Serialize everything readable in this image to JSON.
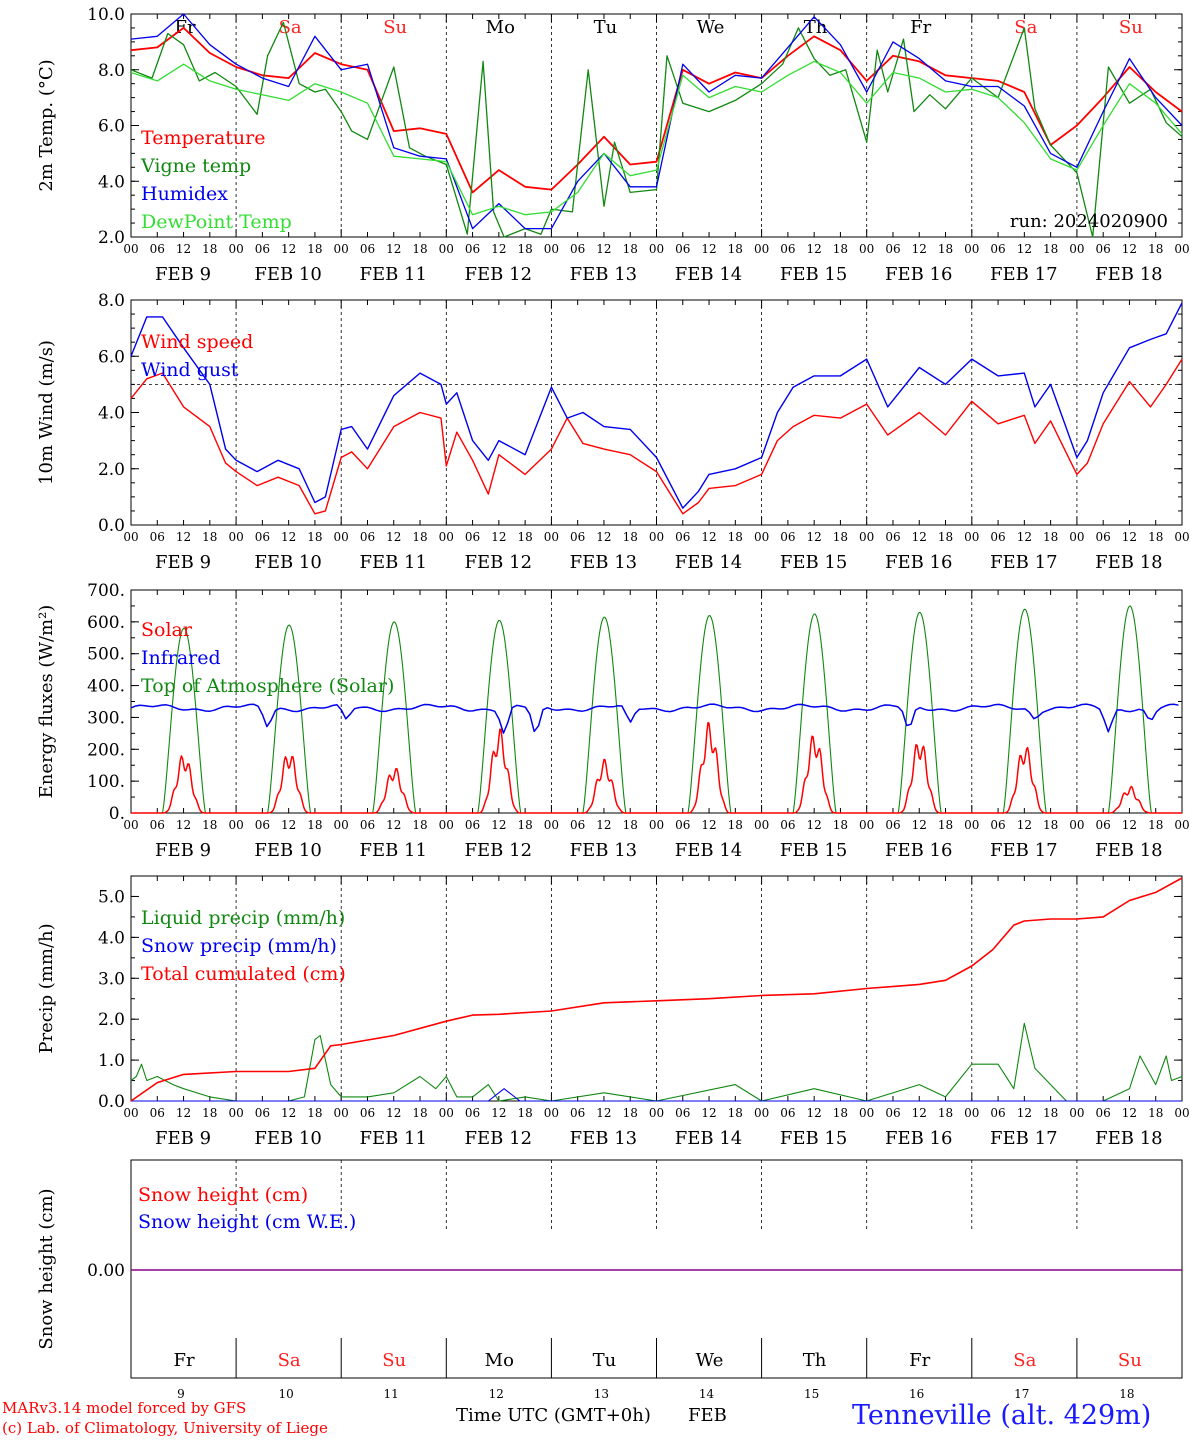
{
  "header": {
    "model": "MARv3.14 model forced by GFS",
    "lab": "(c) Lab. of Climatology, University of Liege",
    "xlabel": "Time UTC (GMT+0h)",
    "month": "FEB",
    "station": "Tenneville (alt. 429m)",
    "run": "run: 2024020900"
  },
  "axis": {
    "days": [
      "Fr",
      "Sa",
      "Su",
      "Mo",
      "Tu",
      "We",
      "Th",
      "Fr",
      "Sa",
      "Su"
    ],
    "weekend_color": "#ff2020",
    "weekday_color": "#000000",
    "weekend_days": [
      "Sa",
      "Su"
    ],
    "hour_ticks": [
      "00",
      "06",
      "12",
      "18"
    ],
    "last_tick": "00",
    "date_labels": [
      "FEB  9",
      "FEB 10",
      "FEB 11",
      "FEB 12",
      "FEB 13",
      "FEB 14",
      "FEB 15",
      "FEB 16",
      "FEB 17",
      "FEB 18"
    ],
    "day_numbers": [
      "9",
      "10",
      "11",
      "12",
      "13",
      "14",
      "15",
      "16",
      "17",
      "18"
    ],
    "xlim_days": [
      0,
      10
    ],
    "grid_vertical": "dashed at 00 UTC"
  },
  "colors": {
    "red": "#ff0000",
    "dark_green": "#118811",
    "blue": "#0000ee",
    "light_green": "#33dd33",
    "purple": "#880088",
    "blue_text": "#1a1aff"
  },
  "chart_data": [
    {
      "id": "temp",
      "type": "line",
      "ylabel": "2m Temp. (°C)",
      "ylim": [
        2,
        10
      ],
      "yticks": [
        "2.0",
        "4.0",
        "6.0",
        "8.0",
        "10.0"
      ],
      "legend": [
        "Temperature",
        "Vigne temp",
        "Humidex",
        "DewPoint Temp"
      ],
      "series": [
        {
          "name": "Temperature",
          "color": "red",
          "x": [
            0,
            0.25,
            0.5,
            0.75,
            1,
            1.25,
            1.5,
            1.75,
            2,
            2.25,
            2.5,
            2.75,
            3,
            3.25,
            3.5,
            3.75,
            4,
            4.25,
            4.5,
            4.75,
            5,
            5.25,
            5.5,
            5.75,
            6,
            6.25,
            6.5,
            6.75,
            7,
            7.25,
            7.5,
            7.75,
            8,
            8.25,
            8.5,
            8.75,
            9,
            9.25,
            9.5,
            9.75,
            10
          ],
          "y": [
            8.7,
            8.8,
            9.5,
            8.6,
            8.1,
            7.8,
            7.7,
            8.6,
            8.2,
            8.0,
            5.8,
            5.9,
            5.7,
            3.6,
            4.4,
            3.8,
            3.7,
            4.6,
            5.6,
            4.6,
            4.7,
            8.0,
            7.5,
            7.9,
            7.7,
            8.5,
            9.2,
            8.7,
            7.6,
            8.5,
            8.3,
            7.8,
            7.7,
            7.6,
            7.2,
            5.3,
            6.0,
            7.0,
            8.1,
            7.2,
            6.5
          ]
        },
        {
          "name": "Vigne temp",
          "color": "dark_green",
          "x": [
            0,
            0.2,
            0.35,
            0.5,
            0.65,
            0.8,
            1,
            1.2,
            1.3,
            1.45,
            1.6,
            1.75,
            1.85,
            2,
            2.1,
            2.25,
            2.5,
            2.65,
            2.8,
            3,
            3.2,
            3.35,
            3.45,
            3.55,
            3.75,
            3.9,
            4,
            4.2,
            4.35,
            4.5,
            4.6,
            4.75,
            5,
            5.1,
            5.25,
            5.5,
            5.75,
            6,
            6.2,
            6.35,
            6.5,
            6.65,
            6.8,
            7,
            7.1,
            7.2,
            7.35,
            7.45,
            7.6,
            7.75,
            8,
            8.25,
            8.5,
            8.6,
            8.75,
            9,
            9.15,
            9.3,
            9.5,
            9.7,
            9.85,
            10
          ],
          "y": [
            8.0,
            7.7,
            9.3,
            8.9,
            7.6,
            7.9,
            7.4,
            6.4,
            8.5,
            9.7,
            7.5,
            7.2,
            7.3,
            6.5,
            5.8,
            5.5,
            8.1,
            5.2,
            4.9,
            4.6,
            2.1,
            8.3,
            2.9,
            2.0,
            2.3,
            2.1,
            3.0,
            2.9,
            8.0,
            3.1,
            5.4,
            3.6,
            3.7,
            8.5,
            6.8,
            6.5,
            6.9,
            7.5,
            8.2,
            9.5,
            8.4,
            7.8,
            8.0,
            5.4,
            8.7,
            7.2,
            9.1,
            6.5,
            7.1,
            6.6,
            7.7,
            7.0,
            9.5,
            6.6,
            5.3,
            4.3,
            2.0,
            8.1,
            6.8,
            7.3,
            6.1,
            5.6
          ]
        },
        {
          "name": "Humidex",
          "color": "blue",
          "x": [
            0,
            0.25,
            0.5,
            0.75,
            1,
            1.25,
            1.5,
            1.75,
            2,
            2.25,
            2.5,
            2.75,
            3,
            3.25,
            3.5,
            3.75,
            4,
            4.25,
            4.5,
            4.75,
            5,
            5.25,
            5.5,
            5.75,
            6,
            6.25,
            6.5,
            6.75,
            7,
            7.25,
            7.5,
            7.75,
            8,
            8.25,
            8.5,
            8.75,
            9,
            9.25,
            9.5,
            9.75,
            10
          ],
          "y": [
            9.1,
            9.2,
            10.0,
            8.9,
            8.2,
            7.7,
            7.4,
            9.2,
            8.0,
            8.2,
            5.2,
            4.9,
            4.8,
            2.3,
            3.2,
            2.3,
            2.3,
            4.0,
            5.0,
            3.8,
            3.8,
            8.2,
            7.2,
            7.8,
            7.7,
            8.8,
            9.9,
            8.9,
            7.2,
            9.0,
            8.4,
            7.6,
            7.4,
            7.4,
            6.7,
            5.0,
            4.5,
            6.5,
            8.4,
            7.0,
            6.0
          ]
        },
        {
          "name": "DewPoint Temp",
          "color": "light_green",
          "x": [
            0,
            0.25,
            0.5,
            0.75,
            1,
            1.25,
            1.5,
            1.75,
            2,
            2.25,
            2.5,
            2.75,
            3,
            3.25,
            3.5,
            3.75,
            4,
            4.25,
            4.5,
            4.75,
            5,
            5.25,
            5.5,
            5.75,
            6,
            6.25,
            6.5,
            6.75,
            7,
            7.25,
            7.5,
            7.75,
            8,
            8.25,
            8.5,
            8.75,
            9,
            9.25,
            9.5,
            9.75,
            10
          ],
          "y": [
            7.9,
            7.6,
            8.2,
            7.6,
            7.3,
            7.1,
            6.9,
            7.5,
            7.2,
            6.8,
            4.9,
            4.8,
            4.7,
            2.8,
            3.1,
            2.8,
            2.9,
            3.6,
            5.0,
            4.2,
            4.4,
            7.8,
            7.0,
            7.4,
            7.2,
            7.8,
            8.3,
            7.9,
            6.8,
            7.9,
            7.7,
            7.2,
            7.3,
            7.0,
            6.1,
            4.8,
            4.4,
            6.0,
            7.5,
            6.8,
            5.7
          ]
        }
      ]
    },
    {
      "id": "wind",
      "type": "line",
      "ylabel": "10m Wind (m/s)",
      "ylim": [
        0,
        8
      ],
      "yticks": [
        "0.0",
        "2.0",
        "4.0",
        "6.0",
        "8.0"
      ],
      "reference_line": 5,
      "legend": [
        "Wind speed",
        "Wind gust"
      ],
      "series": [
        {
          "name": "Wind speed",
          "color": "red",
          "x": [
            0,
            0.15,
            0.3,
            0.5,
            0.75,
            0.9,
            1,
            1.2,
            1.4,
            1.6,
            1.75,
            1.85,
            2,
            2.1,
            2.25,
            2.5,
            2.75,
            2.95,
            3,
            3.1,
            3.25,
            3.4,
            3.5,
            3.75,
            4,
            4.15,
            4.3,
            4.5,
            4.75,
            5,
            5.25,
            5.4,
            5.5,
            5.75,
            6,
            6.15,
            6.3,
            6.5,
            6.75,
            7,
            7.2,
            7.5,
            7.75,
            8,
            8.25,
            8.5,
            8.6,
            8.75,
            9,
            9.1,
            9.25,
            9.5,
            9.7,
            9.85,
            10
          ],
          "y": [
            4.5,
            5.2,
            5.4,
            4.2,
            3.5,
            2.2,
            1.9,
            1.4,
            1.7,
            1.4,
            0.4,
            0.5,
            2.4,
            2.6,
            2.0,
            3.5,
            4.0,
            3.8,
            2.1,
            3.3,
            2.3,
            1.1,
            2.5,
            1.8,
            2.7,
            3.8,
            2.9,
            2.7,
            2.5,
            1.9,
            0.4,
            0.8,
            1.3,
            1.4,
            1.8,
            3.0,
            3.5,
            3.9,
            3.8,
            4.3,
            3.2,
            4.0,
            3.2,
            4.4,
            3.6,
            3.9,
            2.9,
            3.7,
            1.8,
            2.2,
            3.6,
            5.1,
            4.2,
            5.0,
            5.9
          ]
        },
        {
          "name": "Wind gust",
          "color": "blue",
          "x": [
            0,
            0.15,
            0.3,
            0.5,
            0.75,
            0.9,
            1,
            1.2,
            1.4,
            1.6,
            1.75,
            1.85,
            2,
            2.1,
            2.25,
            2.5,
            2.75,
            2.95,
            3,
            3.1,
            3.25,
            3.4,
            3.5,
            3.75,
            4,
            4.15,
            4.3,
            4.5,
            4.75,
            5,
            5.25,
            5.4,
            5.5,
            5.75,
            6,
            6.15,
            6.3,
            6.5,
            6.75,
            7,
            7.2,
            7.5,
            7.75,
            8,
            8.25,
            8.5,
            8.6,
            8.75,
            9,
            9.1,
            9.25,
            9.5,
            9.7,
            9.85,
            10
          ],
          "y": [
            6.0,
            7.4,
            7.4,
            6.3,
            5.0,
            2.7,
            2.3,
            1.9,
            2.3,
            2.0,
            0.8,
            1.0,
            3.4,
            3.5,
            2.7,
            4.6,
            5.4,
            5.0,
            4.3,
            4.7,
            3.0,
            2.3,
            3.0,
            2.5,
            4.9,
            3.8,
            4.0,
            3.5,
            3.4,
            2.4,
            0.6,
            1.2,
            1.8,
            2.0,
            2.4,
            4.0,
            4.9,
            5.3,
            5.3,
            5.9,
            4.2,
            5.6,
            5.0,
            5.9,
            5.3,
            5.4,
            4.2,
            5.0,
            2.4,
            3.0,
            4.7,
            6.3,
            6.6,
            6.8,
            7.9
          ]
        }
      ]
    },
    {
      "id": "energy",
      "type": "line",
      "ylabel": "Energy fluxes (W/m²)",
      "ylim": [
        0,
        700
      ],
      "yticks": [
        "0.",
        "100.",
        "200.",
        "300.",
        "400.",
        "500.",
        "600.",
        "700."
      ],
      "legend": [
        "Solar",
        "Infrared",
        "Top of Atmosphere (Solar)"
      ],
      "toa_peak": [
        580,
        590,
        600,
        605,
        615,
        620,
        625,
        630,
        640,
        650
      ],
      "solar_peak": [
        190,
        200,
        148,
        270,
        170,
        290,
        255,
        240,
        220,
        85
      ],
      "infrared": {
        "base": 330,
        "dips": [
          [
            1.3,
            270
          ],
          [
            2.05,
            295
          ],
          [
            3.55,
            250
          ],
          [
            3.85,
            250
          ],
          [
            4.75,
            285
          ],
          [
            7.4,
            265
          ],
          [
            8.6,
            295
          ],
          [
            9.3,
            255
          ],
          [
            9.7,
            290
          ]
        ]
      },
      "series": [
        {
          "name": "Solar",
          "color": "red"
        },
        {
          "name": "Infrared",
          "color": "blue"
        },
        {
          "name": "Top of Atmosphere (Solar)",
          "color": "dark_green"
        }
      ]
    },
    {
      "id": "precip",
      "type": "line",
      "ylabel": "Precip (mm/h)",
      "ylim": [
        0,
        5.5
      ],
      "yticks": [
        "0.0",
        "1.0",
        "2.0",
        "3.0",
        "4.0",
        "5.0"
      ],
      "legend": [
        "Liquid precip (mm/h)",
        "Snow precip (mm/h)",
        "Total cumulated (cm)"
      ],
      "series": [
        {
          "name": "Liquid precip (mm/h)",
          "color": "dark_green",
          "x": [
            0,
            0.05,
            0.1,
            0.15,
            0.25,
            0.4,
            0.5,
            0.75,
            1,
            1.5,
            1.65,
            1.75,
            1.8,
            1.9,
            2,
            2.25,
            2.5,
            2.75,
            2.9,
            3,
            3.1,
            3.25,
            3.4,
            3.5,
            3.75,
            4,
            4.5,
            5,
            5.75,
            6,
            6.5,
            7,
            7.5,
            7.75,
            8,
            8.25,
            8.4,
            8.5,
            8.6,
            8.75,
            8.9,
            9,
            9.25,
            9.5,
            9.6,
            9.75,
            9.85,
            9.9,
            10
          ],
          "y": [
            0.5,
            0.6,
            0.9,
            0.5,
            0.6,
            0.4,
            0.3,
            0.1,
            0.0,
            0.0,
            0.1,
            1.5,
            1.6,
            0.4,
            0.1,
            0.1,
            0.2,
            0.6,
            0.3,
            0.6,
            0.1,
            0.1,
            0.4,
            0.0,
            0.1,
            0.0,
            0.2,
            0.0,
            0.4,
            0.0,
            0.3,
            0.0,
            0.4,
            0.1,
            0.9,
            0.9,
            0.3,
            1.9,
            0.8,
            0.4,
            0.0,
            0.0,
            0.0,
            0.3,
            1.1,
            0.4,
            1.1,
            0.5,
            0.6
          ]
        },
        {
          "name": "Snow precip (mm/h)",
          "color": "blue",
          "x": [
            0,
            3.4,
            3.55,
            3.7,
            10
          ],
          "y": [
            0,
            0,
            0.3,
            0,
            0
          ]
        },
        {
          "name": "Total cumulated (cm)",
          "color": "red",
          "x": [
            0,
            0.25,
            0.5,
            1,
            1.5,
            1.75,
            1.9,
            2,
            2.5,
            3,
            3.25,
            3.5,
            4,
            4.5,
            5,
            5.5,
            6,
            6.5,
            7,
            7.5,
            7.75,
            8,
            8.2,
            8.4,
            8.5,
            8.75,
            9,
            9.25,
            9.5,
            9.75,
            10
          ],
          "y": [
            0.0,
            0.45,
            0.65,
            0.72,
            0.72,
            0.8,
            1.35,
            1.38,
            1.6,
            1.95,
            2.1,
            2.12,
            2.2,
            2.4,
            2.45,
            2.5,
            2.58,
            2.62,
            2.75,
            2.85,
            2.95,
            3.3,
            3.7,
            4.3,
            4.4,
            4.45,
            4.45,
            4.5,
            4.9,
            5.1,
            5.45
          ]
        }
      ]
    },
    {
      "id": "snow",
      "type": "line",
      "ylabel": "Snow height (cm)",
      "ytick": "0.00",
      "legend": [
        "Snow height (cm)",
        "Snow height (cm W.E.)"
      ],
      "series": [
        {
          "name": "Snow height (cm)",
          "color": "red",
          "x": [
            0,
            10
          ],
          "y": [
            0,
            0
          ]
        },
        {
          "name": "Snow height (cm W.E.)",
          "color": "blue",
          "x": [
            0,
            10
          ],
          "y": [
            0,
            0
          ]
        }
      ]
    }
  ]
}
